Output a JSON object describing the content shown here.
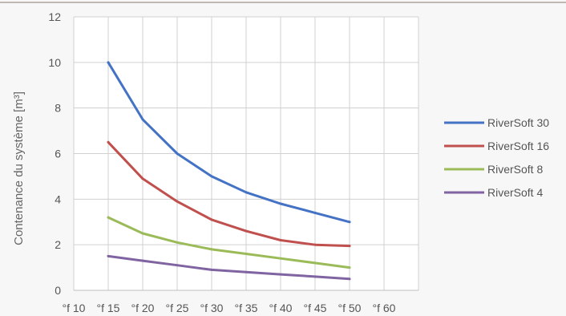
{
  "chart_data": {
    "type": "line",
    "title": "",
    "xlabel": "",
    "ylabel": "Contenance du système [m³]",
    "x_tick_labels": [
      "°f 10",
      "°f 15",
      "°f 20",
      "°f 25",
      "°f 30",
      "°f 35",
      "°f 40",
      "°f 45",
      "°f 50",
      "°f 60"
    ],
    "x": [
      "°f 15",
      "°f 20",
      "°f 25",
      "°f 30",
      "°f 35",
      "°f 40",
      "°f 45",
      "°f 50"
    ],
    "y_ticks": [
      0,
      2,
      4,
      6,
      8,
      10,
      12
    ],
    "ylim": [
      0,
      12
    ],
    "grid": true,
    "legend_position": "right",
    "series": [
      {
        "name": "RiverSoft 30",
        "color": "#4472c4",
        "values": [
          10.0,
          7.5,
          6.0,
          5.0,
          4.3,
          3.8,
          3.4,
          3.0
        ]
      },
      {
        "name": "RiverSoft 16",
        "color": "#c0504d",
        "values": [
          6.5,
          4.9,
          3.9,
          3.1,
          2.6,
          2.2,
          2.0,
          1.95
        ]
      },
      {
        "name": "RiverSoft 8",
        "color": "#9bbb59",
        "values": [
          3.2,
          2.5,
          2.1,
          1.8,
          1.6,
          1.4,
          1.2,
          1.0
        ]
      },
      {
        "name": "RiverSoft 4",
        "color": "#8064a2",
        "values": [
          1.5,
          1.3,
          1.1,
          0.9,
          0.8,
          0.7,
          0.6,
          0.5
        ]
      }
    ]
  }
}
